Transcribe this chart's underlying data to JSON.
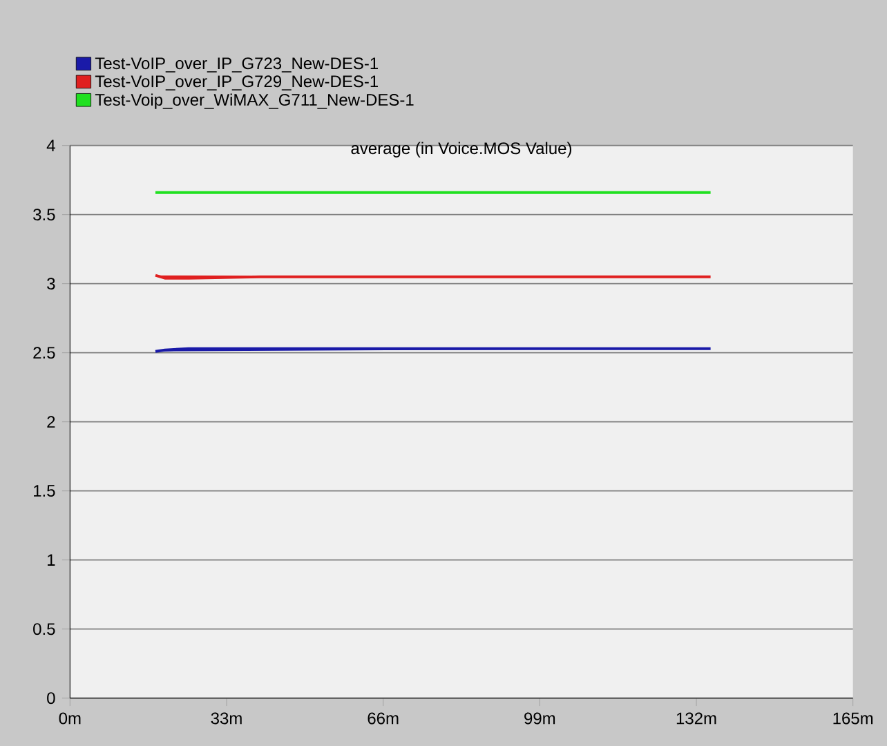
{
  "chart_data": {
    "type": "line",
    "title": "average (in Voice.MOS Value)",
    "xlim": [
      0,
      165
    ],
    "ylim": [
      0,
      4
    ],
    "xticks": [
      {
        "value": 0,
        "label": "0m"
      },
      {
        "value": 33,
        "label": "33m"
      },
      {
        "value": 66,
        "label": "66m"
      },
      {
        "value": 99,
        "label": "99m"
      },
      {
        "value": 132,
        "label": "132m"
      },
      {
        "value": 165,
        "label": "165m"
      }
    ],
    "yticks": [
      0,
      0.5,
      1,
      1.5,
      2,
      2.5,
      3,
      3.5,
      4
    ],
    "grid": "y",
    "legend": "top left",
    "line_style": "solid",
    "series": [
      {
        "name": "Test-VoIP_over_IP_G723_New-DES-1",
        "color": "#1a1aa8",
        "x": [
          18,
          20,
          25,
          40,
          60,
          80,
          100,
          120,
          135
        ],
        "values": [
          2.51,
          2.52,
          2.53,
          2.53,
          2.53,
          2.53,
          2.53,
          2.53,
          2.53
        ]
      },
      {
        "name": "Test-VoIP_over_IP_G729_New-DES-1",
        "color": "#e02020",
        "x": [
          18,
          20,
          25,
          40,
          60,
          80,
          100,
          120,
          135
        ],
        "values": [
          3.06,
          3.04,
          3.04,
          3.05,
          3.05,
          3.05,
          3.05,
          3.05,
          3.05
        ]
      },
      {
        "name": "Test-Voip_over_WiMAX_G711_New-DES-1",
        "color": "#20e020",
        "x": [
          18,
          20,
          25,
          40,
          60,
          80,
          100,
          120,
          135
        ],
        "values": [
          3.66,
          3.66,
          3.66,
          3.66,
          3.66,
          3.66,
          3.66,
          3.66,
          3.66
        ]
      }
    ]
  }
}
